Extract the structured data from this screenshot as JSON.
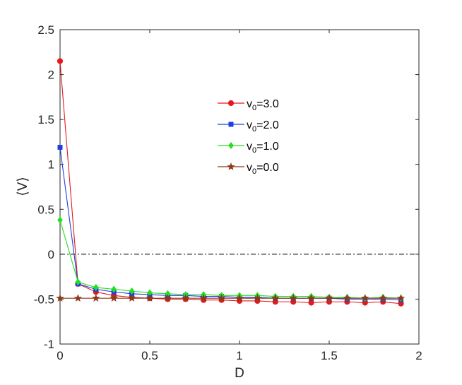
{
  "chart_data": {
    "type": "line",
    "title": "",
    "xlabel": "D",
    "ylabel": "⟨V⟩",
    "xlim": [
      0,
      2
    ],
    "ylim": [
      -1,
      2.5
    ],
    "x_ticks": [
      "0",
      "0.5",
      "1",
      "1.5",
      "2"
    ],
    "y_ticks": [
      "-1",
      "-0.5",
      "0",
      "0.5",
      "1",
      "1.5",
      "2",
      "2.5"
    ],
    "grid": false,
    "legend_position": "upper-center",
    "reference_line": {
      "y": 0,
      "style": "dash-dot",
      "color": "#000000"
    },
    "x": [
      0,
      0.1,
      0.2,
      0.3,
      0.4,
      0.5,
      0.6,
      0.7,
      0.8,
      0.9,
      1.0,
      1.1,
      1.2,
      1.3,
      1.4,
      1.5,
      1.6,
      1.7,
      1.8,
      1.9
    ],
    "series": [
      {
        "name": "v0=3.0",
        "label_main": "v",
        "label_sub": "0",
        "label_rest": "=3.0",
        "color": "#e31a1c",
        "marker": "circle",
        "values": [
          2.15,
          -0.33,
          -0.42,
          -0.46,
          -0.48,
          -0.49,
          -0.5,
          -0.5,
          -0.51,
          -0.51,
          -0.52,
          -0.52,
          -0.53,
          -0.53,
          -0.54,
          -0.53,
          -0.53,
          -0.54,
          -0.53,
          -0.55
        ]
      },
      {
        "name": "v0=2.0",
        "label_main": "v",
        "label_sub": "0",
        "label_rest": "=2.0",
        "color": "#1f3fe0",
        "marker": "square",
        "values": [
          1.19,
          -0.33,
          -0.39,
          -0.42,
          -0.44,
          -0.45,
          -0.46,
          -0.46,
          -0.47,
          -0.47,
          -0.48,
          -0.48,
          -0.49,
          -0.49,
          -0.49,
          -0.49,
          -0.5,
          -0.5,
          -0.5,
          -0.51
        ]
      },
      {
        "name": "v0=1.0",
        "label_main": "v",
        "label_sub": "0",
        "label_rest": "=1.0",
        "color": "#22e01f",
        "marker": "diamond",
        "values": [
          0.38,
          -0.31,
          -0.37,
          -0.39,
          -0.41,
          -0.43,
          -0.44,
          -0.45,
          -0.45,
          -0.46,
          -0.46,
          -0.46,
          -0.47,
          -0.47,
          -0.47,
          -0.48,
          -0.48,
          -0.49,
          -0.48,
          -0.49
        ]
      },
      {
        "name": "v0=0.0",
        "label_main": "v",
        "label_sub": "0",
        "label_rest": "=0.0",
        "color": "#8b3a1a",
        "marker": "star",
        "values": [
          -0.49,
          -0.49,
          -0.49,
          -0.49,
          -0.49,
          -0.49,
          -0.49,
          -0.49,
          -0.49,
          -0.49,
          -0.49,
          -0.49,
          -0.49,
          -0.49,
          -0.49,
          -0.49,
          -0.49,
          -0.49,
          -0.49,
          -0.49
        ]
      }
    ]
  }
}
